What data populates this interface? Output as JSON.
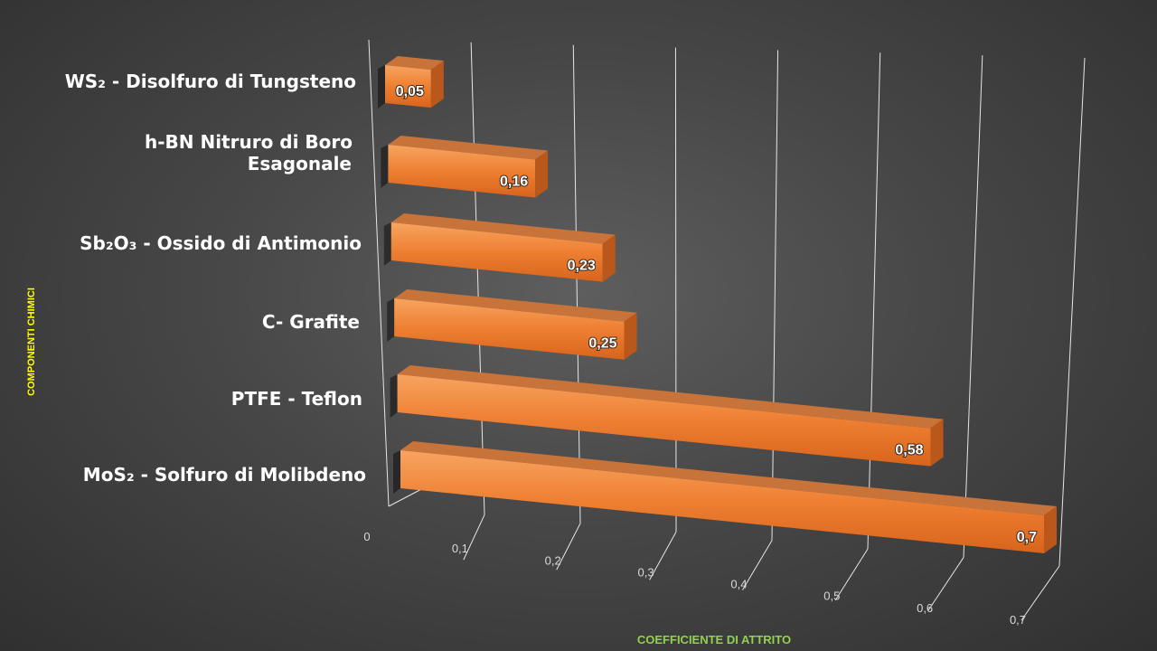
{
  "chart_data": {
    "type": "bar",
    "orientation": "horizontal",
    "style": "3d",
    "categories": [
      [
        "WS₂ - Disolfuro di Tungsteno"
      ],
      [
        "h-BN Nitruro di Boro",
        "Esagonale"
      ],
      [
        "Sb₂O₃ - Ossido di Antimonio"
      ],
      [
        "C- Grafite"
      ],
      [
        "PTFE - Teflon"
      ],
      [
        "MoS₂ - Solfuro di Molibdeno"
      ]
    ],
    "values": [
      0.05,
      0.16,
      0.23,
      0.25,
      0.58,
      0.7
    ],
    "value_labels": [
      "0,05",
      "0,16",
      "0,23",
      "0,25",
      "0,58",
      "0,7"
    ],
    "xlabel": "COEFFICIENTE DI ATTRITO",
    "ylabel": "COMPONENTI CHIMICI",
    "xlim": [
      0,
      0.7
    ],
    "ticks": [
      0,
      0.1,
      0.2,
      0.3,
      0.4,
      0.5,
      0.6,
      0.7
    ],
    "tick_labels": [
      "0",
      "0,1",
      "0,2",
      "0,3",
      "0,4",
      "0,5",
      "0,6",
      "0,7"
    ],
    "grid": true,
    "bar_color": "#ed7d31"
  }
}
